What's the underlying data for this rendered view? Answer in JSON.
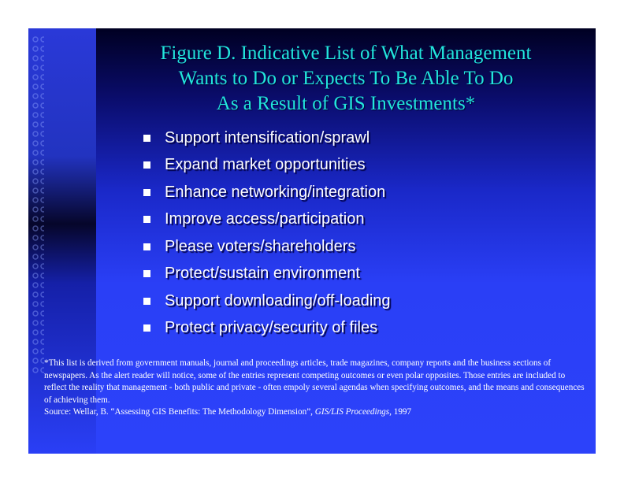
{
  "title": {
    "line1": "Figure D. Indicative List of What Management",
    "line2": "Wants to Do or Expects To Be Able To Do",
    "line3": "As a Result of GIS Investments*"
  },
  "bullets": [
    "Support intensification/sprawl",
    "Expand market opportunities",
    "Enhance networking/integration",
    "Improve access/participation",
    "Please voters/shareholders",
    "Protect/sustain environment",
    "Support downloading/off-loading",
    "Protect privacy/security of files"
  ],
  "footnote": {
    "note": "*This list is derived from government manuals, journal and proceedings articles, trade magazines, company reports and the business sections of newspapers. As the alert reader will notice, some of the entries represent competing outcomes or even polar opposites. Those entries are included to reflect the reality that management - both public and private - often empoly several agendas when specifying outcomes, and the means and consequences of achieving them.",
    "source_prefix": "Source: Wellar, B. “Assessing GIS Benefits: The Methodology Dimension”, ",
    "source_journal": "GIS/LIS Proceedings,",
    "source_year": " 1997"
  },
  "colors": {
    "title": "#22e6dc",
    "background": "#2a3ff6",
    "text": "#ffffff"
  }
}
